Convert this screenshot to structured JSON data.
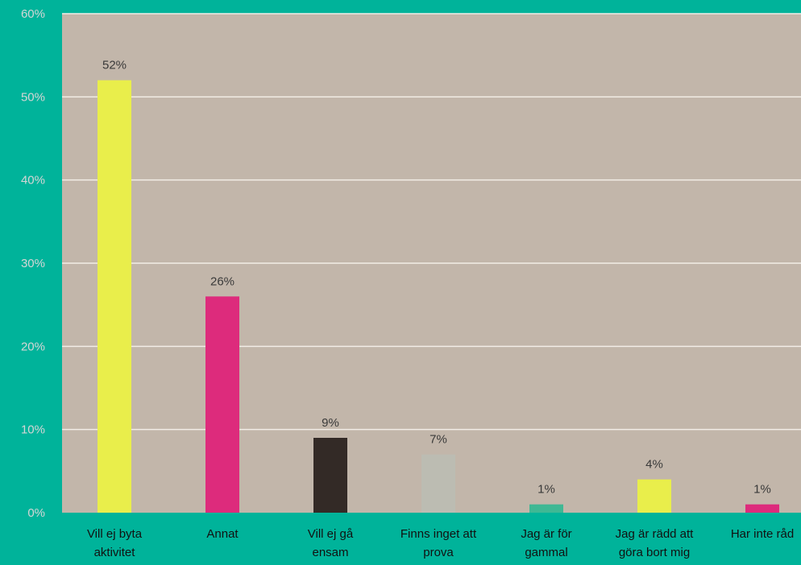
{
  "chart_data": {
    "type": "bar",
    "categories": [
      [
        "Vill ej byta",
        "aktivitet"
      ],
      [
        "Annat"
      ],
      [
        "Vill ej gå",
        "ensam"
      ],
      [
        "Finns inget att",
        "prova"
      ],
      [
        "Jag är för",
        "gammal"
      ],
      [
        "Jag är rädd att",
        "göra bort mig"
      ],
      [
        "Har inte råd"
      ]
    ],
    "values": [
      52,
      26,
      9,
      7,
      1,
      4,
      1
    ],
    "value_labels": [
      "52%",
      "26%",
      "9%",
      "7%",
      "1%",
      "4%",
      "1%"
    ],
    "bar_colors": [
      "#e9ee4b",
      "#dd2b7c",
      "#332a26",
      "#bcbcb2",
      "#3fb894",
      "#e9ee4b",
      "#dd2b7c"
    ],
    "ylim": [
      0,
      60
    ],
    "yticks": [
      "0%",
      "10%",
      "20%",
      "30%",
      "40%",
      "50%",
      "60%"
    ],
    "grid": true,
    "title": "",
    "xlabel": "",
    "ylabel": ""
  },
  "colors": {
    "background": "#00b39a",
    "plot_area": "#c2b6aa",
    "gridline": "#f2ede6"
  }
}
